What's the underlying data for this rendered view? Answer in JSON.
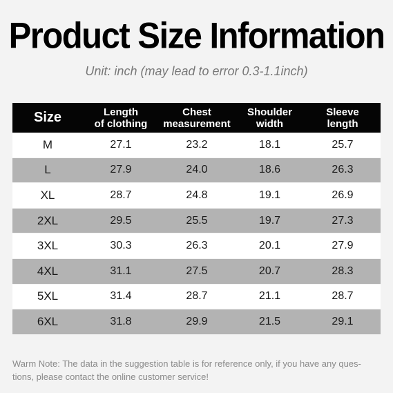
{
  "title": "Product Size Information",
  "subtitle": "Unit: inch (may lead to error 0.3-1.1inch)",
  "table": {
    "headers": [
      {
        "line1": "Size",
        "line2": ""
      },
      {
        "line1": "Length",
        "line2": "of clothing"
      },
      {
        "line1": "Chest",
        "line2": "measurement"
      },
      {
        "line1": "Shoulder",
        "line2": "width"
      },
      {
        "line1": "Sleeve",
        "line2": "length"
      }
    ],
    "rows": [
      [
        "M",
        "27.1",
        "23.2",
        "18.1",
        "25.7"
      ],
      [
        "L",
        "27.9",
        "24.0",
        "18.6",
        "26.3"
      ],
      [
        "XL",
        "28.7",
        "24.8",
        "19.1",
        "26.9"
      ],
      [
        "2XL",
        "29.5",
        "25.5",
        "19.7",
        "27.3"
      ],
      [
        "3XL",
        "30.3",
        "26.3",
        "20.1",
        "27.9"
      ],
      [
        "4XL",
        "31.1",
        "27.5",
        "20.7",
        "28.3"
      ],
      [
        "5XL",
        "31.4",
        "28.7",
        "21.1",
        "28.7"
      ],
      [
        "6XL",
        "31.8",
        "29.9",
        "21.5",
        "29.1"
      ]
    ]
  },
  "note": {
    "line1": "Warm Note: The data in the suggestion table is for reference only, if you have any ques-",
    "line2": "tions, please contact the online customer service!"
  },
  "colors": {
    "background": "#f3f3f3",
    "header_bg": "#050505",
    "row_alt_bg": "#b3b3b3",
    "row_bg": "#ffffff"
  }
}
